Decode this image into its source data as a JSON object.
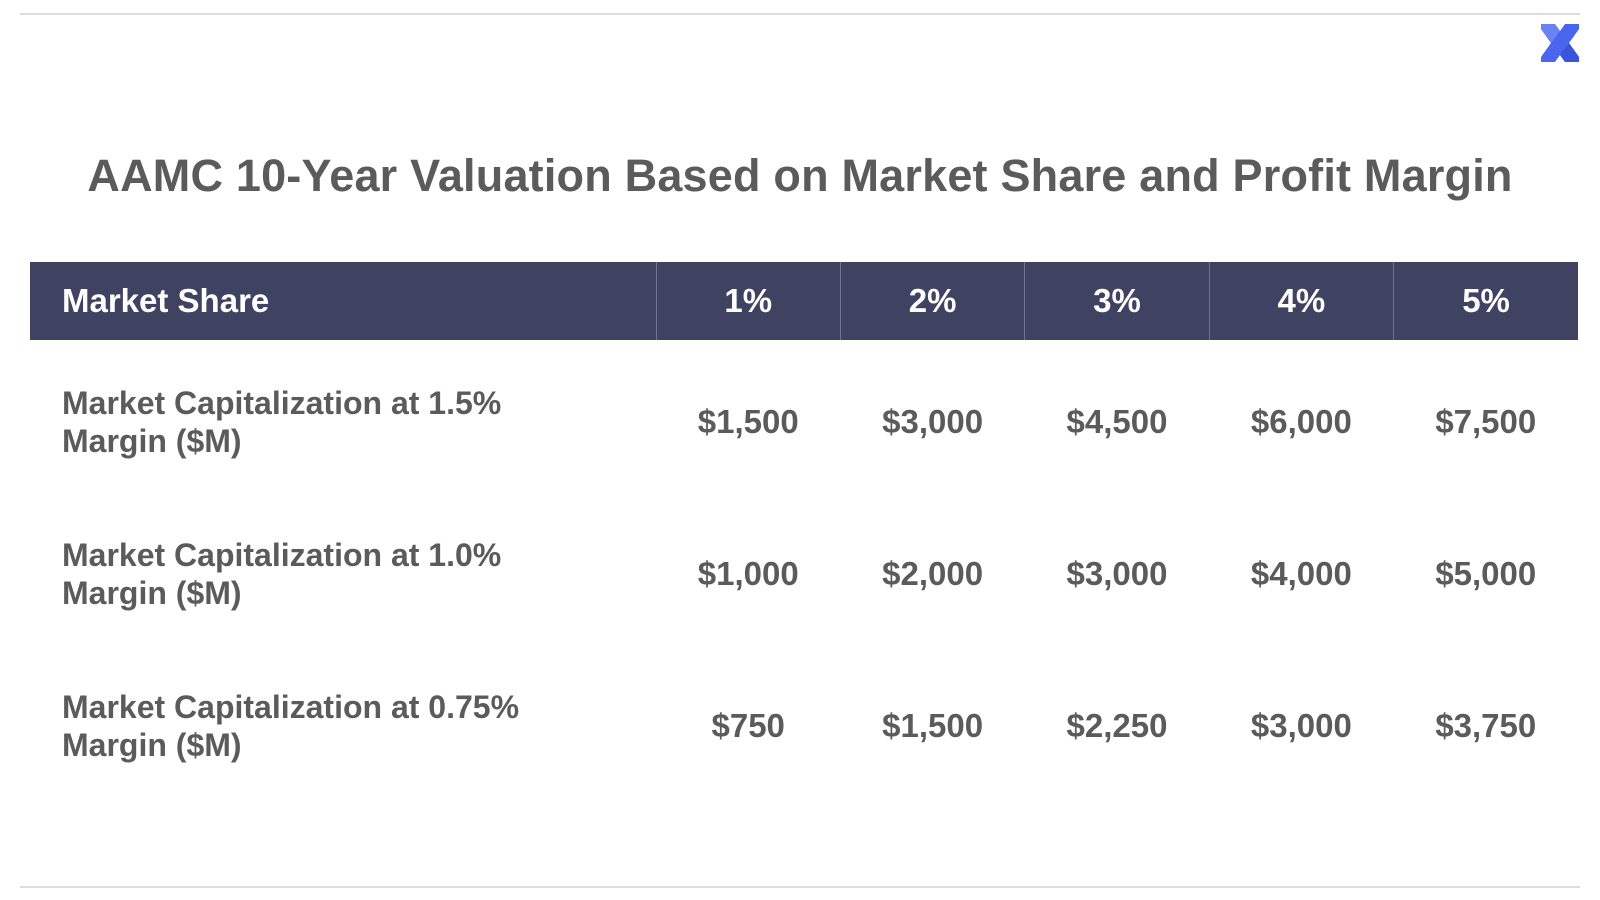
{
  "page": {
    "title": "AAMC 10-Year Valuation Based on Market Share and Profit Margin"
  },
  "logo": {
    "icon": "x-mark-logo-icon",
    "color": "#4a66ee"
  },
  "colors": {
    "header_background": "#3f4361",
    "header_text": "#ffffff",
    "body_text": "#5b5b5b"
  },
  "chart_data": {
    "type": "table",
    "title": "AAMC 10-Year Valuation Based on Market Share and Profit Margin",
    "header_label": "Market Share",
    "columns": [
      "1%",
      "2%",
      "3%",
      "4%",
      "5%"
    ],
    "rows": [
      {
        "label": "Market Capitalization at 1.5% Margin ($M)",
        "values": [
          "$1,500",
          "$3,000",
          "$4,500",
          "$6,000",
          "$7,500"
        ]
      },
      {
        "label": "Market Capitalization at 1.0% Margin ($M)",
        "values": [
          "$1,000",
          "$2,000",
          "$3,000",
          "$4,000",
          "$5,000"
        ]
      },
      {
        "label": "Market Capitalization at 0.75% Margin ($M)",
        "values": [
          "$750",
          "$1,500",
          "$2,250",
          "$3,000",
          "$3,750"
        ]
      }
    ]
  }
}
